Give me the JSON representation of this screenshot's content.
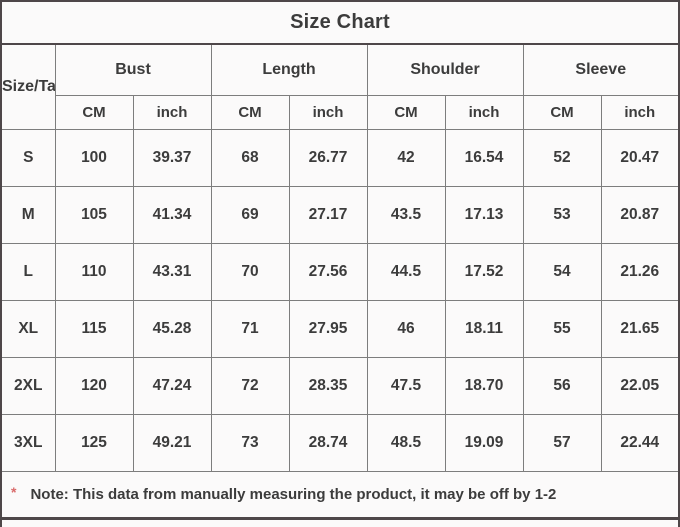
{
  "title": "Size Chart",
  "table": {
    "corner_label": "Size/Tag",
    "groups": [
      {
        "label": "Bust"
      },
      {
        "label": "Length"
      },
      {
        "label": "Shoulder"
      },
      {
        "label": "Sleeve"
      }
    ],
    "unit_headers": [
      "CM",
      "inch",
      "CM",
      "inch",
      "CM",
      "inch",
      "CM",
      "inch"
    ],
    "rows": [
      {
        "size": "S",
        "values": [
          "100",
          "39.37",
          "68",
          "26.77",
          "42",
          "16.54",
          "52",
          "20.47"
        ]
      },
      {
        "size": "M",
        "values": [
          "105",
          "41.34",
          "69",
          "27.17",
          "43.5",
          "17.13",
          "53",
          "20.87"
        ]
      },
      {
        "size": "L",
        "values": [
          "110",
          "43.31",
          "70",
          "27.56",
          "44.5",
          "17.52",
          "54",
          "21.26"
        ]
      },
      {
        "size": "XL",
        "values": [
          "115",
          "45.28",
          "71",
          "27.95",
          "46",
          "18.11",
          "55",
          "21.65"
        ]
      },
      {
        "size": "2XL",
        "values": [
          "120",
          "47.24",
          "72",
          "28.35",
          "47.5",
          "18.70",
          "56",
          "22.05"
        ]
      },
      {
        "size": "3XL",
        "values": [
          "125",
          "49.21",
          "73",
          "28.74",
          "48.5",
          "19.09",
          "57",
          "22.44"
        ]
      }
    ]
  },
  "note": {
    "asterisk": "*",
    "text": "Note: This data from manually measuring the product, it may be off by 1-2"
  },
  "colors": {
    "background": "#fbfafa",
    "text": "#3c3c3c",
    "border_outer": "#4e4749",
    "border_inner": "#7d7d7d",
    "asterisk_red": "#d96a6a"
  }
}
